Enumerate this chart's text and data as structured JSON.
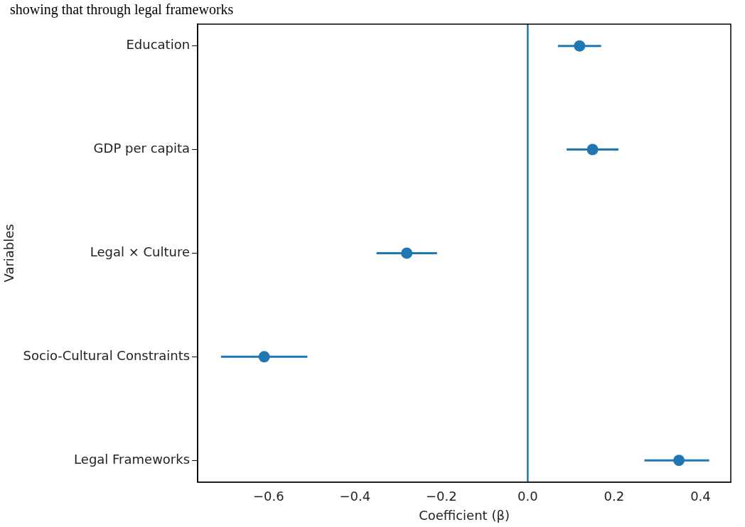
{
  "chart_data": {
    "type": "scatter",
    "xlabel": "Coefficient (β)",
    "ylabel": "Variables",
    "annotations": [
      "showing that through legal frameworks"
    ],
    "categories": [
      "Education",
      "GDP per capita",
      "Legal × Culture",
      "Socio-Cultural Constraints",
      "Legal Frameworks"
    ],
    "orientation": "horizontal",
    "series": [
      {
        "color": "#1f77b4",
        "values": [
          0.12,
          0.15,
          -0.28,
          -0.61,
          0.35
        ],
        "errors": [
          [
            0.07,
            0.17
          ],
          [
            0.09,
            0.21
          ],
          [
            -0.35,
            -0.21
          ],
          [
            -0.71,
            -0.51
          ],
          [
            0.27,
            0.42
          ]
        ]
      }
    ],
    "xlim": [
      -0.764,
      0.47
    ],
    "xticks": [
      {
        "value": -0.6,
        "label": "−0.6"
      },
      {
        "value": -0.4,
        "label": "−0.4"
      },
      {
        "value": -0.2,
        "label": "−0.2"
      },
      {
        "value": 0,
        "label": "0.0"
      },
      {
        "value": 0.2,
        "label": "0.2"
      },
      {
        "value": 0.4,
        "label": "0.4"
      }
    ],
    "ref_lines": [
      {
        "axis": "x",
        "value": 0,
        "color": "#1f77b4"
      }
    ],
    "marker": "circle",
    "grid": false,
    "legend": false
  }
}
